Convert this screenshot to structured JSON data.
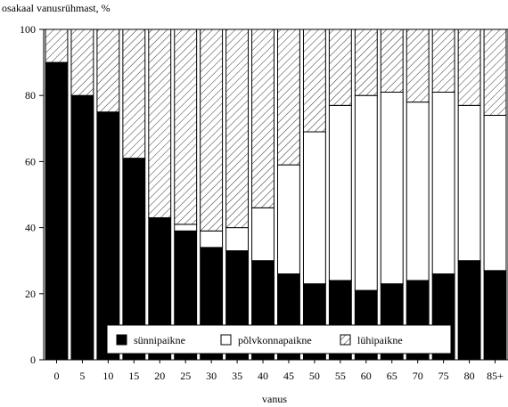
{
  "chart_data": {
    "type": "bar",
    "stacked": true,
    "percent_stacked": true,
    "ylabel": "osakaal vanusrühmast, %",
    "xlabel": "vanus",
    "ylim": [
      0,
      100
    ],
    "yticks": [
      0,
      20,
      40,
      60,
      80,
      100
    ],
    "categories": [
      "0",
      "5",
      "10",
      "15",
      "20",
      "25",
      "30",
      "35",
      "40",
      "45",
      "50",
      "55",
      "60",
      "65",
      "70",
      "75",
      "80",
      "85+"
    ],
    "series": [
      {
        "name": "sünnipaikne",
        "fill": "solid-black",
        "values": [
          90,
          80,
          75,
          61,
          43,
          39,
          34,
          33,
          30,
          26,
          23,
          24,
          21,
          23,
          24,
          26,
          30,
          27
        ]
      },
      {
        "name": "põlvkonnapaikne",
        "fill": "white",
        "values": [
          0,
          0,
          0,
          0,
          0,
          2,
          5,
          7,
          16,
          33,
          46,
          53,
          59,
          58,
          54,
          55,
          47,
          47
        ]
      },
      {
        "name": "lühipaikne",
        "fill": "diagonal-hatch",
        "values": [
          10,
          20,
          25,
          39,
          57,
          59,
          61,
          60,
          54,
          41,
          31,
          23,
          20,
          19,
          22,
          19,
          23,
          26
        ]
      }
    ],
    "legend": "bottom-center, inside plot",
    "grid": false
  }
}
